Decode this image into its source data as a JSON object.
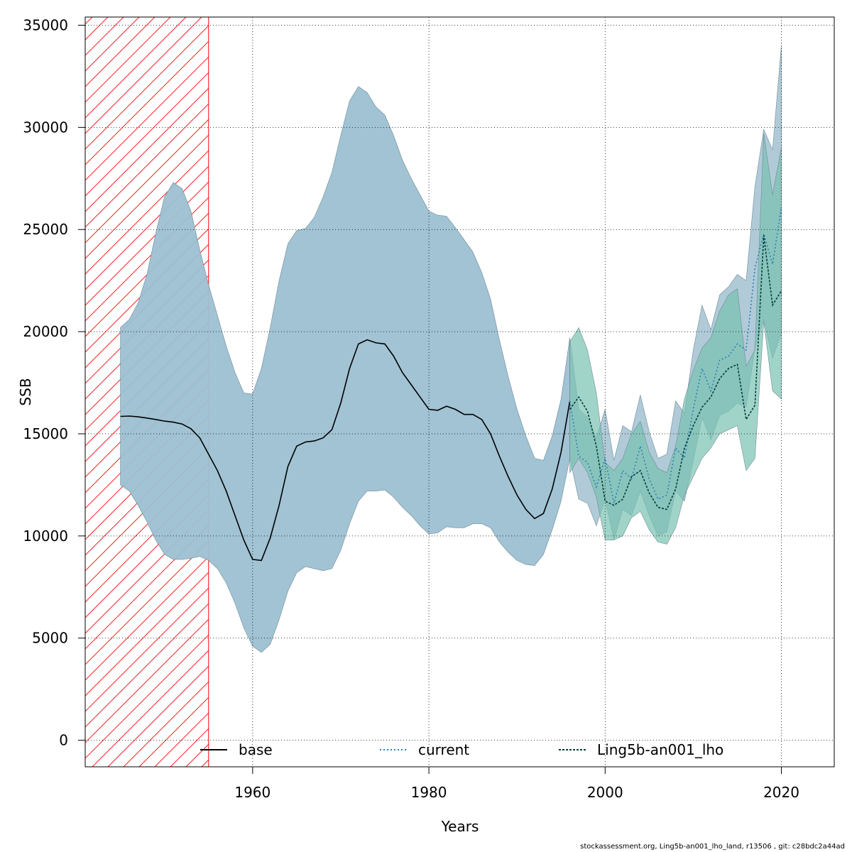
{
  "chart_data": {
    "type": "line",
    "xlabel": "Years",
    "ylabel": "SSB",
    "xlim": [
      1941,
      2026
    ],
    "ylim": [
      -1300,
      35400
    ],
    "x_ticks": [
      1960,
      1980,
      2000,
      2020
    ],
    "y_ticks": [
      0,
      5000,
      10000,
      15000,
      20000,
      25000,
      30000,
      35000
    ],
    "grid": true,
    "legend_position": "bottom",
    "shaded_region": {
      "x_start": 1941,
      "x_end": 1955,
      "color": "#ff0000",
      "pattern": "hatch"
    },
    "series": [
      {
        "name": "base",
        "color": "#000000",
        "line_style": "solid",
        "band_color": "#9cc0d2",
        "x": [
          1945,
          1946,
          1947,
          1948,
          1949,
          1950,
          1951,
          1952,
          1953,
          1954,
          1955,
          1956,
          1957,
          1958,
          1959,
          1960,
          1961,
          1962,
          1963,
          1964,
          1965,
          1966,
          1967,
          1968,
          1969,
          1970,
          1971,
          1972,
          1973,
          1974,
          1975,
          1976,
          1977,
          1978,
          1979,
          1980,
          1981,
          1982,
          1983,
          1984,
          1985,
          1986,
          1987,
          1988,
          1989,
          1990,
          1991,
          1992,
          1993,
          1994,
          1995,
          1996
        ],
        "values": [
          15850,
          15870,
          15830,
          15770,
          15700,
          15620,
          15570,
          15480,
          15250,
          14800,
          14000,
          13200,
          12200,
          11000,
          9800,
          8850,
          8800,
          9900,
          11500,
          13400,
          14400,
          14600,
          14650,
          14800,
          15200,
          16500,
          18200,
          19400,
          19600,
          19450,
          19400,
          18800,
          18000,
          17400,
          16800,
          16200,
          16150,
          16350,
          16200,
          15950,
          15950,
          15700,
          15000,
          13900,
          12900,
          12000,
          11300,
          10850,
          11100,
          12300,
          14100,
          16600
        ],
        "lower": [
          12500,
          12200,
          11500,
          10700,
          9800,
          9100,
          8850,
          8850,
          8900,
          9000,
          8800,
          8400,
          7700,
          6700,
          5500,
          4600,
          4300,
          4700,
          5900,
          7300,
          8200,
          8500,
          8400,
          8300,
          8400,
          9300,
          10600,
          11700,
          12200,
          12200,
          12250,
          11900,
          11400,
          11000,
          10500,
          10100,
          10150,
          10450,
          10400,
          10400,
          10600,
          10600,
          10400,
          9700,
          9200,
          8800,
          8600,
          8550,
          9100,
          10300,
          11700,
          13800
        ],
        "upper": [
          20200,
          20600,
          21400,
          22800,
          24800,
          26600,
          27300,
          27000,
          25900,
          24000,
          22300,
          20800,
          19300,
          18000,
          17000,
          16950,
          18200,
          20200,
          22500,
          24300,
          24950,
          25050,
          25600,
          26600,
          27800,
          29600,
          31300,
          32000,
          31700,
          31000,
          30600,
          29600,
          28400,
          27500,
          26700,
          25900,
          25700,
          25650,
          25100,
          24500,
          23900,
          22900,
          21600,
          19600,
          17800,
          16200,
          14900,
          13800,
          13700,
          14900,
          16700,
          19700
        ]
      },
      {
        "name": "current",
        "color": "#2b7fb3",
        "line_style": "dotted",
        "band_color": "#8fb4c7",
        "x": [
          1996,
          1997,
          1998,
          1999,
          2000,
          2001,
          2002,
          2003,
          2004,
          2005,
          2006,
          2007,
          2008,
          2009,
          2010,
          2011,
          2012,
          2013,
          2014,
          2015,
          2016,
          2017,
          2018,
          2019,
          2020
        ],
        "values": [
          16600,
          13900,
          13600,
          12400,
          13800,
          11600,
          13200,
          12800,
          14400,
          12800,
          11800,
          12000,
          14300,
          13800,
          16200,
          18200,
          17100,
          18600,
          18800,
          19400,
          19100,
          23100,
          24800,
          23300,
          26100
        ],
        "lower": [
          13800,
          11800,
          11600,
          10500,
          11800,
          9800,
          11300,
          11000,
          12200,
          11000,
          10000,
          10200,
          12200,
          11700,
          13700,
          15800,
          14700,
          15900,
          16100,
          16500,
          16300,
          19200,
          20600,
          18700,
          19900
        ],
        "upper": [
          19700,
          16200,
          15800,
          14800,
          16200,
          13700,
          15400,
          15100,
          16900,
          15100,
          13800,
          14000,
          16600,
          16000,
          19100,
          21300,
          20100,
          21800,
          22200,
          22800,
          22500,
          27100,
          29900,
          28900,
          34000
        ]
      },
      {
        "name": "Ling5b-an001_lho",
        "color": "#003b3b",
        "line_style": "dashed",
        "band_color": "#79c2b0",
        "x": [
          1996,
          1997,
          1998,
          1999,
          2000,
          2001,
          2002,
          2003,
          2004,
          2005,
          2006,
          2007,
          2008,
          2009,
          2010,
          2011,
          2012,
          2013,
          2014,
          2015,
          2016,
          2017,
          2018,
          2019,
          2020
        ],
        "values": [
          16200,
          16800,
          16100,
          14400,
          11700,
          11500,
          11800,
          12900,
          13200,
          12100,
          11400,
          11300,
          12300,
          14300,
          15400,
          16300,
          16800,
          17700,
          18200,
          18400,
          15700,
          16400,
          24700,
          21300,
          22000
        ],
        "lower": [
          13100,
          13800,
          13100,
          11900,
          9800,
          9800,
          10000,
          10900,
          11200,
          10300,
          9700,
          9600,
          10400,
          12000,
          12900,
          13800,
          14300,
          15000,
          15200,
          15400,
          13200,
          13800,
          20500,
          17100,
          16700
        ],
        "upper": [
          19500,
          20200,
          19100,
          17000,
          13600,
          13200,
          13800,
          15000,
          15600,
          14100,
          13300,
          13100,
          14400,
          16700,
          18100,
          19200,
          19700,
          21000,
          21800,
          22100,
          18300,
          19100,
          29700,
          26700,
          29000
        ]
      }
    ]
  },
  "footer_text": "stockassessment.org, Ling5b-an001_lho_land, r13506 , git: c28bdc2a44ad"
}
